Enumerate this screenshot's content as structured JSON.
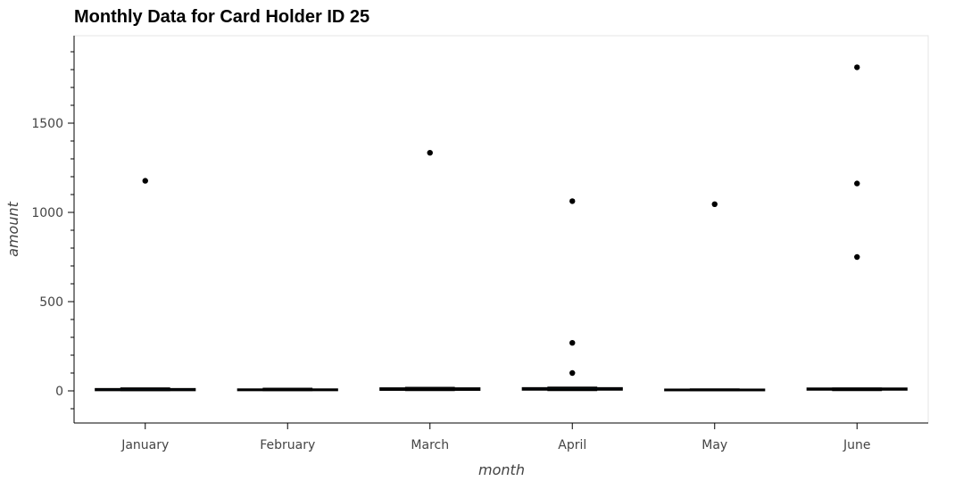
{
  "chart_data": {
    "type": "box",
    "title": "Monthly Data for Card Holder ID 25",
    "xlabel": "month",
    "ylabel": "amount",
    "ylim": [
      -180,
      1990
    ],
    "yticks": [
      0,
      500,
      1000,
      1500
    ],
    "categories": [
      "January",
      "February",
      "March",
      "April",
      "May",
      "June"
    ],
    "boxes": [
      {
        "category": "January",
        "whisker_low": 1,
        "q1": 2,
        "median": 5,
        "q3": 12,
        "whisker_high": 17,
        "outliers": [
          1177
        ]
      },
      {
        "category": "February",
        "whisker_low": 1,
        "q1": 2,
        "median": 5,
        "q3": 10,
        "whisker_high": 15,
        "outliers": []
      },
      {
        "category": "March",
        "whisker_low": 1,
        "q1": 4,
        "median": 10,
        "q3": 16,
        "whisker_high": 20,
        "outliers": [
          1334
        ]
      },
      {
        "category": "April",
        "whisker_low": 1,
        "q1": 5,
        "median": 10,
        "q3": 17,
        "whisker_high": 21,
        "outliers": [
          100,
          269,
          1063
        ]
      },
      {
        "category": "May",
        "whisker_low": 1,
        "q1": 2,
        "median": 5,
        "q3": 9,
        "whisker_high": 11,
        "outliers": [
          1046
        ]
      },
      {
        "category": "June",
        "whisker_low": 1,
        "q1": 5,
        "median": 10,
        "q3": 15,
        "whisker_high": 16,
        "outliers": [
          750,
          1162,
          1813
        ]
      }
    ],
    "box_fill": "#30a2da",
    "outlier_color": "#000000",
    "grid": false,
    "legend": "none"
  }
}
